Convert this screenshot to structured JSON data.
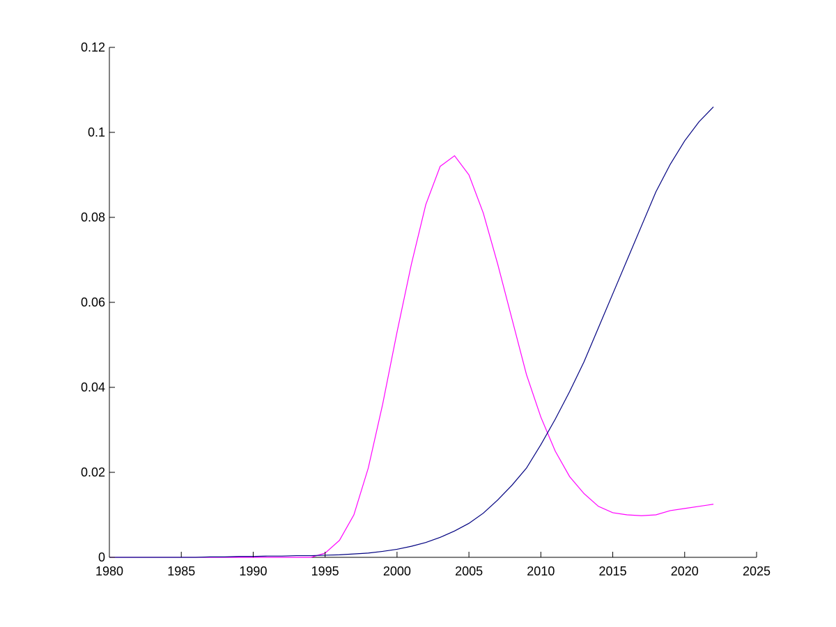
{
  "chart_data": {
    "type": "line",
    "title": "",
    "xlabel": "",
    "ylabel": "",
    "xlim": [
      1980,
      2025
    ],
    "ylim": [
      0,
      0.12
    ],
    "grid": false,
    "legend": "none",
    "x_ticks": [
      1980,
      1985,
      1990,
      1995,
      2000,
      2005,
      2010,
      2015,
      2020,
      2025
    ],
    "y_ticks": [
      0,
      0.02,
      0.04,
      0.06,
      0.08,
      0.1,
      0.12
    ],
    "x_tick_labels": [
      "1980",
      "1985",
      "1990",
      "1995",
      "2000",
      "2005",
      "2010",
      "2015",
      "2020",
      "2025"
    ],
    "y_tick_labels": [
      "0",
      "0.02",
      "0.04",
      "0.06",
      "0.08",
      "0.1",
      "0.12"
    ],
    "series": [
      {
        "color": "#ff00ff",
        "x": [
          1980,
          1981,
          1982,
          1983,
          1984,
          1985,
          1986,
          1987,
          1988,
          1989,
          1990,
          1991,
          1992,
          1993,
          1994,
          1995,
          1996,
          1997,
          1998,
          1999,
          2000,
          2001,
          2002,
          2003,
          2004,
          2005,
          2006,
          2007,
          2008,
          2009,
          2010,
          2011,
          2012,
          2013,
          2014,
          2015,
          2016,
          2017,
          2018,
          2019,
          2020,
          2021,
          2022
        ],
        "values": [
          0,
          0,
          0,
          0,
          0,
          0,
          0,
          0,
          0,
          0,
          0,
          0,
          0,
          0,
          0,
          0.001,
          0.004,
          0.01,
          0.021,
          0.036,
          0.053,
          0.069,
          0.083,
          0.092,
          0.0945,
          0.09,
          0.081,
          0.069,
          0.056,
          0.043,
          0.033,
          0.025,
          0.019,
          0.015,
          0.012,
          0.0105,
          0.01,
          0.0098,
          0.01,
          0.011,
          0.0115,
          0.012,
          0.0125
        ]
      },
      {
        "color": "#000080",
        "x": [
          1980,
          1981,
          1982,
          1983,
          1984,
          1985,
          1986,
          1987,
          1988,
          1989,
          1990,
          1991,
          1992,
          1993,
          1994,
          1995,
          1996,
          1997,
          1998,
          1999,
          2000,
          2001,
          2002,
          2003,
          2004,
          2005,
          2006,
          2007,
          2008,
          2009,
          2010,
          2011,
          2012,
          2013,
          2014,
          2015,
          2016,
          2017,
          2018,
          2019,
          2020,
          2021,
          2022
        ],
        "values": [
          0,
          0,
          0,
          0,
          0,
          0,
          0,
          0.0001,
          0.0001,
          0.0002,
          0.0002,
          0.0003,
          0.0003,
          0.0004,
          0.0004,
          0.0005,
          0.0006,
          0.0008,
          0.001,
          0.0014,
          0.0019,
          0.0026,
          0.0035,
          0.0047,
          0.0062,
          0.008,
          0.0104,
          0.0135,
          0.017,
          0.021,
          0.0265,
          0.0325,
          0.039,
          0.046,
          0.054,
          0.062,
          0.07,
          0.078,
          0.086,
          0.0925,
          0.098,
          0.1025,
          0.106
        ]
      }
    ]
  }
}
